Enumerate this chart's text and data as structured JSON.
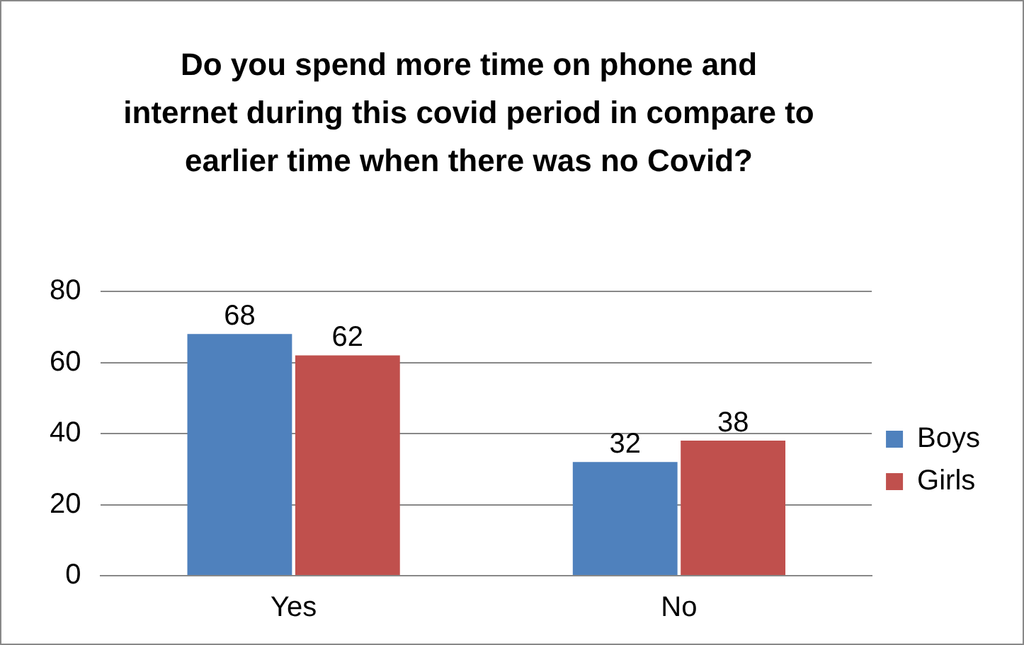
{
  "chart_data": {
    "type": "bar",
    "title": "Do you spend more time on phone and internet during this covid period in compare to earlier time when there was no Covid?",
    "categories": [
      "Yes",
      "No"
    ],
    "series": [
      {
        "name": "Boys",
        "color": "#4f81bd",
        "values": [
          68,
          32
        ]
      },
      {
        "name": "Girls",
        "color": "#c0504d",
        "values": [
          62,
          38
        ]
      }
    ],
    "ylim": [
      0,
      80
    ],
    "yticks": [
      0,
      20,
      40,
      60,
      80
    ],
    "grid": "y",
    "legend": "right",
    "data_labels": true
  }
}
